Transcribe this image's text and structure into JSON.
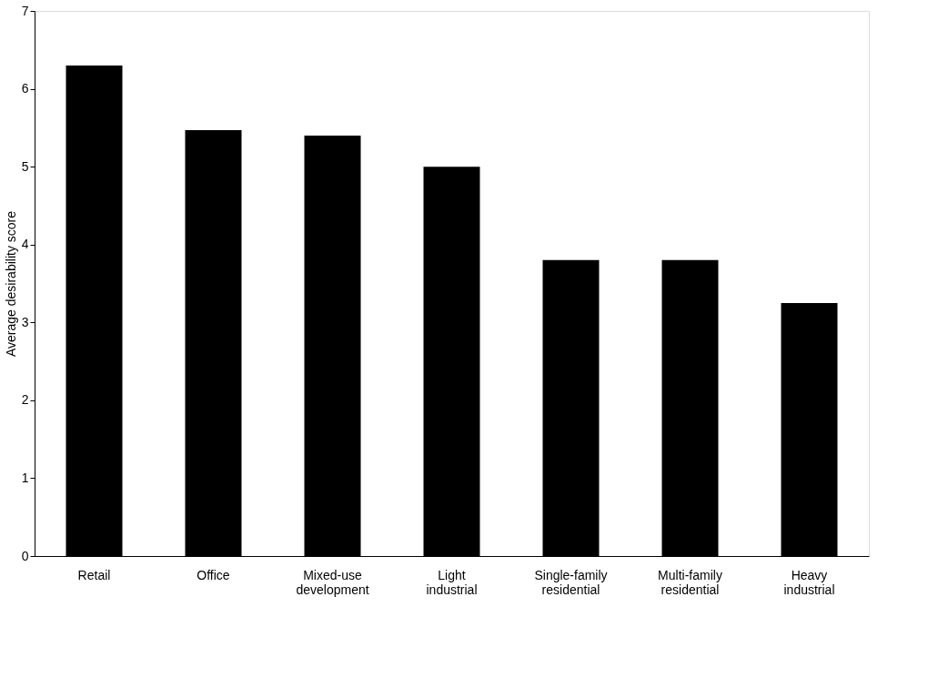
{
  "chart_data": {
    "type": "bar",
    "ylabel": "Average desirability score",
    "categories": [
      "Retail",
      "Office",
      "Mixed-use development",
      "Light industrial",
      "Single-family residential",
      "Multi-family residential",
      "Heavy industrial"
    ],
    "values": [
      6.3,
      5.47,
      5.4,
      5.0,
      3.8,
      3.8,
      3.25
    ],
    "color": "#000000",
    "ylim": [
      0,
      7
    ],
    "yticks": [
      0,
      1,
      2,
      3,
      4,
      5,
      6,
      7
    ],
    "grid": false
  }
}
